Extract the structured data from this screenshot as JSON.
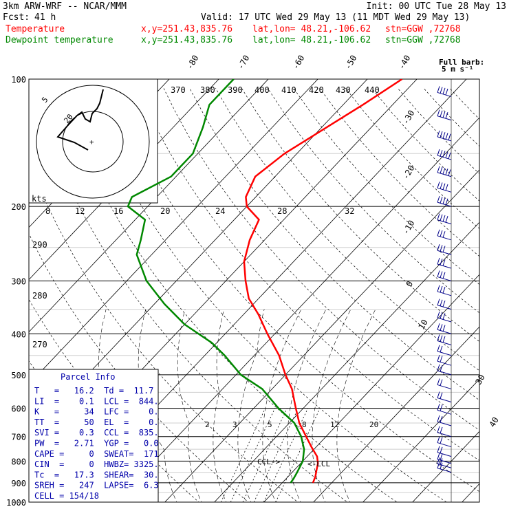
{
  "header": {
    "model": "3km ARW-WRF -- NCAR/MMM",
    "init": "Init: 00 UTC Tue 28 May 13",
    "fcst_label": "Fcst:",
    "fcst_value": "41 h",
    "valid": "Valid: 17 UTC Wed 29 May 13 (11 MDT Wed 29 May 13)",
    "temp_line": {
      "name": "Temperature",
      "xy": "x,y=251.43,835.76",
      "latlon": "lat,lon= 48.21,-106.62",
      "stn": "stn=GGW ,72768"
    },
    "dew_line": {
      "name": "Dewpoint temperature",
      "xy": "x,y=251.43,835.76",
      "latlon": "lat,lon= 48.21,-106.62",
      "stn": "stn=GGW ,72768"
    }
  },
  "barb_key": {
    "line1": "Full barb:",
    "line2": "5 m s⁻¹"
  },
  "hodograph": {
    "units": "kts",
    "rings": [
      "5",
      "20"
    ],
    "axis_ticks": [
      "8",
      "12",
      "16",
      "20",
      "24",
      "28",
      "32"
    ]
  },
  "parcel": {
    "title": "Parcel Info",
    "rows": [
      "T   =   16.2  Td =  11.7",
      "LI  =    0.1  LCL =  844.",
      "K   =     34  LFC =    0.",
      "TT  =     50  EL  =    0.",
      "SVI =    0.3  CCL =  835.",
      "PW  =   2.71  YGP =   0.0",
      "CAPE =     0  SWEAT=  171",
      "CIN  =     0  HWBZ= 3325.",
      "Tc  =   17.3  SHEAR=  30.",
      "SREH =   247  LAPSE=  6.3",
      "CELL = 154/18"
    ]
  },
  "annotations": {
    "ccl": "CCL->",
    "lcl": "<-LCL"
  },
  "colors": {
    "temperature": "#ff0000",
    "dewpoint": "#008800",
    "parcel_text": "#0000aa",
    "hodograph_trace": "#000000"
  },
  "chart_data": {
    "type": "line",
    "subtype": "skew-T log-P sounding",
    "y_axis": {
      "label": "",
      "scale": "log",
      "range": [
        1000,
        100
      ],
      "ticks": [
        "100",
        "200",
        "300",
        "400",
        "500",
        "600",
        "700",
        "800",
        "900",
        "1000"
      ]
    },
    "isotherm_labels": [
      "-80",
      "-70",
      "-60",
      "-50",
      "-40",
      "-30",
      "-20",
      "-10",
      "0",
      "10",
      "20",
      "30",
      "40"
    ],
    "dry_adiabat_labels": [
      "370",
      "380",
      "390",
      "400",
      "410",
      "420",
      "430",
      "440"
    ],
    "dry_adiabat_left_labels": [
      "290",
      "280",
      "270"
    ],
    "mixing_ratio_labels": [
      "2",
      "3",
      "5",
      "8",
      "12",
      "20"
    ],
    "series": [
      {
        "name": "Temperature",
        "points": [
          [
            100,
            -43
          ],
          [
            115,
            -46
          ],
          [
            130,
            -49
          ],
          [
            150,
            -52.5
          ],
          [
            170,
            -54
          ],
          [
            190,
            -52
          ],
          [
            200,
            -50
          ],
          [
            215,
            -45
          ],
          [
            240,
            -43
          ],
          [
            270,
            -40
          ],
          [
            300,
            -36
          ],
          [
            330,
            -32
          ],
          [
            360,
            -27
          ],
          [
            400,
            -21.5
          ],
          [
            450,
            -15
          ],
          [
            500,
            -10
          ],
          [
            540,
            -6
          ],
          [
            600,
            -1.5
          ],
          [
            650,
            2
          ],
          [
            700,
            6
          ],
          [
            740,
            9
          ],
          [
            780,
            12
          ],
          [
            810,
            13.5
          ],
          [
            840,
            14.5
          ],
          [
            870,
            15.5
          ],
          [
            900,
            16.2
          ]
        ]
      },
      {
        "name": "Dewpoint temperature",
        "points": [
          [
            100,
            -77
          ],
          [
            115,
            -77
          ],
          [
            130,
            -74
          ],
          [
            150,
            -71
          ],
          [
            170,
            -71
          ],
          [
            190,
            -75
          ],
          [
            200,
            -74
          ],
          [
            215,
            -68
          ],
          [
            240,
            -65
          ],
          [
            260,
            -63
          ],
          [
            300,
            -56
          ],
          [
            340,
            -48
          ],
          [
            380,
            -40
          ],
          [
            420,
            -31
          ],
          [
            450,
            -26
          ],
          [
            500,
            -19
          ],
          [
            540,
            -12
          ],
          [
            600,
            -5
          ],
          [
            650,
            1
          ],
          [
            700,
            5
          ],
          [
            750,
            8
          ],
          [
            800,
            10
          ],
          [
            850,
            11
          ],
          [
            880,
            11.5
          ],
          [
            900,
            11.7
          ]
        ]
      }
    ],
    "wind_barbs": [
      {
        "p": 110,
        "speed_ms": 20,
        "dir": 240
      },
      {
        "p": 125,
        "speed_ms": 22,
        "dir": 245
      },
      {
        "p": 140,
        "speed_ms": 25,
        "dir": 250
      },
      {
        "p": 155,
        "speed_ms": 25,
        "dir": 250
      },
      {
        "p": 170,
        "speed_ms": 24,
        "dir": 250
      },
      {
        "p": 185,
        "speed_ms": 22,
        "dir": 250
      },
      {
        "p": 200,
        "speed_ms": 20,
        "dir": 250
      },
      {
        "p": 220,
        "speed_ms": 18,
        "dir": 250
      },
      {
        "p": 240,
        "speed_ms": 17,
        "dir": 250
      },
      {
        "p": 260,
        "speed_ms": 16,
        "dir": 250
      },
      {
        "p": 280,
        "speed_ms": 15,
        "dir": 245
      },
      {
        "p": 300,
        "speed_ms": 15,
        "dir": 245
      },
      {
        "p": 325,
        "speed_ms": 14,
        "dir": 240
      },
      {
        "p": 350,
        "speed_ms": 14,
        "dir": 240
      },
      {
        "p": 375,
        "speed_ms": 14,
        "dir": 240
      },
      {
        "p": 400,
        "speed_ms": 13,
        "dir": 240
      },
      {
        "p": 425,
        "speed_ms": 13,
        "dir": 235
      },
      {
        "p": 450,
        "speed_ms": 12,
        "dir": 235
      },
      {
        "p": 475,
        "speed_ms": 12,
        "dir": 230
      },
      {
        "p": 500,
        "speed_ms": 11,
        "dir": 230
      },
      {
        "p": 540,
        "speed_ms": 10,
        "dir": 225
      },
      {
        "p": 580,
        "speed_ms": 10,
        "dir": 220
      },
      {
        "p": 620,
        "speed_ms": 9,
        "dir": 210
      },
      {
        "p": 660,
        "speed_ms": 9,
        "dir": 200
      },
      {
        "p": 700,
        "speed_ms": 9,
        "dir": 190
      },
      {
        "p": 740,
        "speed_ms": 8,
        "dir": 180
      },
      {
        "p": 780,
        "speed_ms": 8,
        "dir": 170
      },
      {
        "p": 810,
        "speed_ms": 10,
        "dir": 160
      },
      {
        "p": 830,
        "speed_ms": 12,
        "dir": 150
      },
      {
        "p": 850,
        "speed_ms": 12,
        "dir": 150
      }
    ]
  }
}
